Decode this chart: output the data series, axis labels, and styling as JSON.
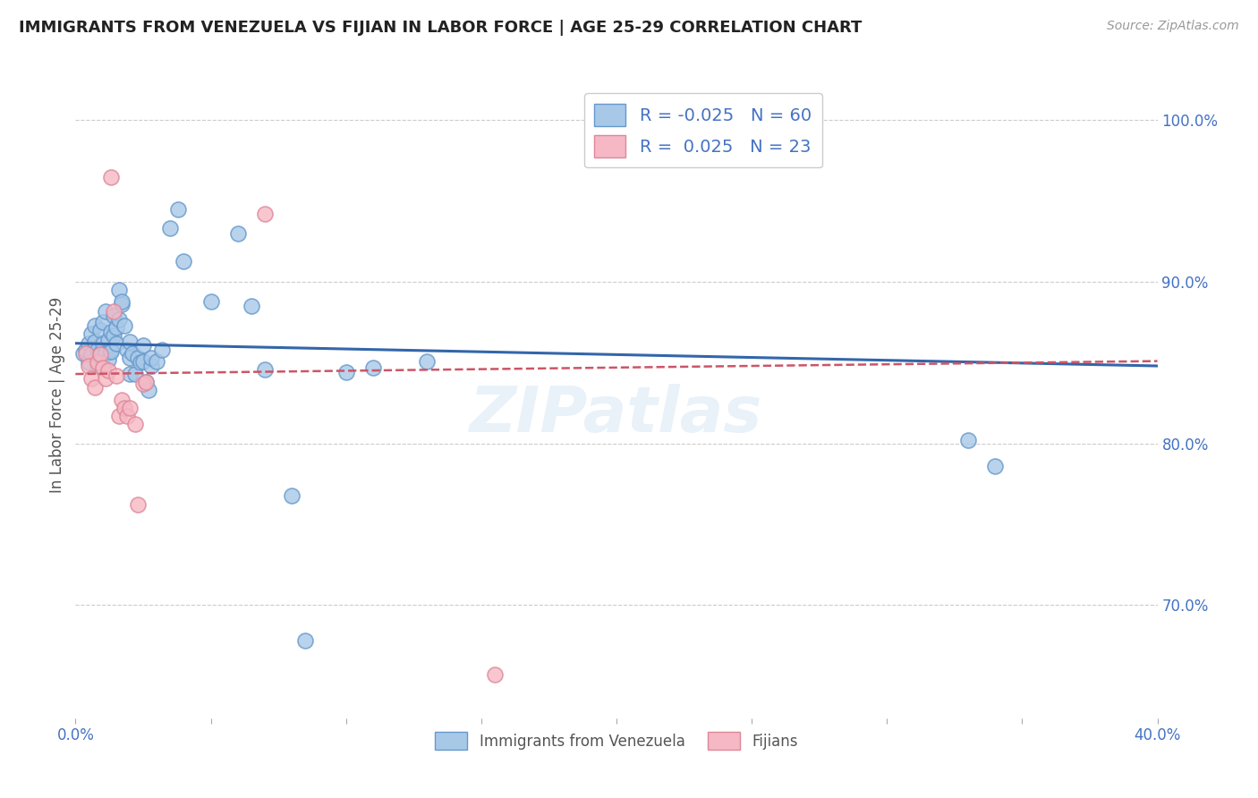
{
  "title": "IMMIGRANTS FROM VENEZUELA VS FIJIAN IN LABOR FORCE | AGE 25-29 CORRELATION CHART",
  "source": "Source: ZipAtlas.com",
  "ylabel": "In Labor Force | Age 25-29",
  "xlim": [
    0.0,
    0.4
  ],
  "ylim": [
    0.63,
    1.03
  ],
  "yticks": [
    0.7,
    0.8,
    0.9,
    1.0
  ],
  "ytick_labels": [
    "70.0%",
    "80.0%",
    "90.0%",
    "100.0%"
  ],
  "xticks": [
    0.0,
    0.05,
    0.1,
    0.15,
    0.2,
    0.25,
    0.3,
    0.35,
    0.4
  ],
  "xtick_labels": [
    "0.0%",
    "",
    "",
    "",
    "",
    "",
    "",
    "",
    "40.0%"
  ],
  "background_color": "#ffffff",
  "grid_color": "#cccccc",
  "title_color": "#222222",
  "watermark": "ZIPatlas",
  "legend_R1": "-0.025",
  "legend_N1": "60",
  "legend_R2": "0.025",
  "legend_N2": "23",
  "blue_color": "#a8c8e8",
  "blue_edge_color": "#6699cc",
  "pink_color": "#f5b8c4",
  "pink_edge_color": "#dd8899",
  "blue_line_color": "#3366aa",
  "pink_line_color": "#cc5566",
  "blue_scatter": [
    [
      0.003,
      0.856
    ],
    [
      0.004,
      0.858
    ],
    [
      0.005,
      0.862
    ],
    [
      0.005,
      0.85
    ],
    [
      0.006,
      0.868
    ],
    [
      0.006,
      0.855
    ],
    [
      0.007,
      0.863
    ],
    [
      0.007,
      0.873
    ],
    [
      0.008,
      0.858
    ],
    [
      0.008,
      0.848
    ],
    [
      0.009,
      0.87
    ],
    [
      0.009,
      0.856
    ],
    [
      0.01,
      0.862
    ],
    [
      0.01,
      0.875
    ],
    [
      0.011,
      0.882
    ],
    [
      0.011,
      0.856
    ],
    [
      0.012,
      0.852
    ],
    [
      0.012,
      0.864
    ],
    [
      0.013,
      0.858
    ],
    [
      0.013,
      0.869
    ],
    [
      0.013,
      0.857
    ],
    [
      0.014,
      0.867
    ],
    [
      0.014,
      0.879
    ],
    [
      0.015,
      0.872
    ],
    [
      0.015,
      0.862
    ],
    [
      0.016,
      0.895
    ],
    [
      0.016,
      0.877
    ],
    [
      0.017,
      0.886
    ],
    [
      0.017,
      0.888
    ],
    [
      0.018,
      0.873
    ],
    [
      0.019,
      0.858
    ],
    [
      0.02,
      0.853
    ],
    [
      0.02,
      0.843
    ],
    [
      0.02,
      0.863
    ],
    [
      0.021,
      0.856
    ],
    [
      0.022,
      0.843
    ],
    [
      0.023,
      0.853
    ],
    [
      0.024,
      0.85
    ],
    [
      0.025,
      0.851
    ],
    [
      0.025,
      0.861
    ],
    [
      0.026,
      0.838
    ],
    [
      0.027,
      0.833
    ],
    [
      0.028,
      0.848
    ],
    [
      0.028,
      0.853
    ],
    [
      0.03,
      0.851
    ],
    [
      0.032,
      0.858
    ],
    [
      0.035,
      0.933
    ],
    [
      0.038,
      0.945
    ],
    [
      0.04,
      0.913
    ],
    [
      0.05,
      0.888
    ],
    [
      0.06,
      0.93
    ],
    [
      0.065,
      0.885
    ],
    [
      0.07,
      0.846
    ],
    [
      0.08,
      0.768
    ],
    [
      0.085,
      0.678
    ],
    [
      0.1,
      0.844
    ],
    [
      0.11,
      0.847
    ],
    [
      0.13,
      0.851
    ],
    [
      0.33,
      0.802
    ],
    [
      0.34,
      0.786
    ]
  ],
  "pink_scatter": [
    [
      0.004,
      0.856
    ],
    [
      0.005,
      0.848
    ],
    [
      0.006,
      0.84
    ],
    [
      0.007,
      0.835
    ],
    [
      0.008,
      0.85
    ],
    [
      0.009,
      0.855
    ],
    [
      0.01,
      0.847
    ],
    [
      0.011,
      0.84
    ],
    [
      0.012,
      0.845
    ],
    [
      0.013,
      0.965
    ],
    [
      0.014,
      0.882
    ],
    [
      0.015,
      0.842
    ],
    [
      0.016,
      0.817
    ],
    [
      0.017,
      0.827
    ],
    [
      0.018,
      0.822
    ],
    [
      0.019,
      0.817
    ],
    [
      0.02,
      0.822
    ],
    [
      0.022,
      0.812
    ],
    [
      0.023,
      0.762
    ],
    [
      0.025,
      0.837
    ],
    [
      0.026,
      0.838
    ],
    [
      0.07,
      0.942
    ],
    [
      0.155,
      0.657
    ]
  ],
  "blue_trendline_x": [
    0.0,
    0.4
  ],
  "blue_trendline_y": [
    0.862,
    0.848
  ],
  "pink_trendline_x": [
    0.0,
    0.4
  ],
  "pink_trendline_y": [
    0.843,
    0.851
  ]
}
